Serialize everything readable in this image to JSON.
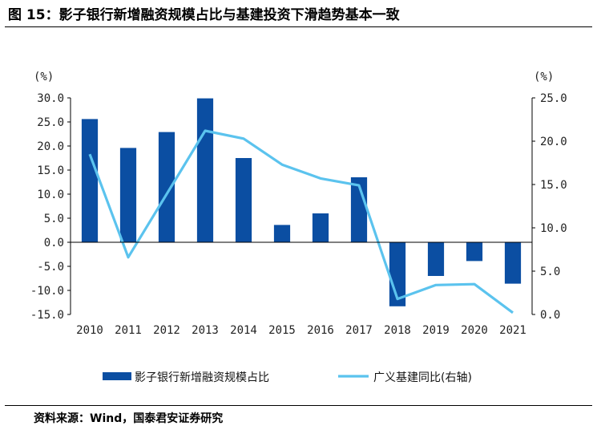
{
  "header": {
    "title": "图 15：影子银行新增融资规模占比与基建投资下滑趋势基本一致"
  },
  "footer": {
    "source": "资料来源：Wind，国泰君安证券研究"
  },
  "colors": {
    "bar": "#0B4EA2",
    "line": "#5BC3EE",
    "axis": "#000000"
  },
  "chart_data": {
    "type": "bar",
    "categories": [
      "2010",
      "2011",
      "2012",
      "2013",
      "2014",
      "2015",
      "2016",
      "2017",
      "2018",
      "2019",
      "2020",
      "2021"
    ],
    "series": [
      {
        "name": "影子银行新增融资规模占比",
        "type": "bar",
        "axis": "left",
        "values": [
          25.6,
          19.6,
          22.9,
          29.9,
          17.5,
          3.6,
          6.0,
          13.5,
          -13.3,
          -7.0,
          -3.9,
          -8.6
        ]
      },
      {
        "name": "广义基建同比(右轴)",
        "type": "line",
        "axis": "right",
        "values": [
          18.5,
          6.6,
          13.9,
          21.2,
          20.3,
          17.3,
          15.7,
          14.9,
          1.8,
          3.4,
          3.5,
          0.2
        ]
      }
    ],
    "y_left": {
      "unit": "(%)",
      "min": -15,
      "max": 30,
      "ticks": [
        30,
        25,
        20,
        15,
        10,
        5,
        0,
        -5,
        -10,
        -15
      ],
      "tick_labels": [
        "30.0",
        "25.0",
        "20.0",
        "15.0",
        "10.0",
        "5.0",
        "0.0",
        "-5.0",
        "-10.0",
        "-15.0"
      ]
    },
    "y_right": {
      "unit": "(%)",
      "min": 0,
      "max": 25,
      "ticks": [
        25,
        20,
        15,
        10,
        5,
        0
      ],
      "tick_labels": [
        "25.0",
        "20.0",
        "15.0",
        "10.0",
        "5.0",
        "0.0"
      ]
    },
    "grid": false,
    "legend": "bottom"
  }
}
